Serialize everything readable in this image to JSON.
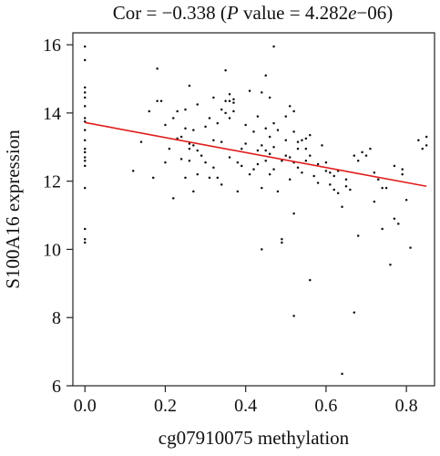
{
  "title": {
    "prefix": "Cor = −0.338 (",
    "p_symbol": "P",
    "suffix_before_e": " value = 4.282",
    "e_symbol": "e",
    "suffix_after_e": "−06)"
  },
  "colors": {
    "points": "#111111",
    "fit_line": "#e01b1b",
    "axes": "#222222"
  },
  "chart_data": {
    "type": "scatter",
    "title": "Cor = −0.338 (P value = 4.282e−06)",
    "xlabel": "cg07910075 methylation",
    "ylabel": "S100A16 expression",
    "xlim": [
      -0.03,
      0.87
    ],
    "ylim": [
      6.0,
      16.35
    ],
    "x_ticks": [
      0.0,
      0.2,
      0.4,
      0.6,
      0.8
    ],
    "x_tick_labels": [
      "0.0",
      "0.2",
      "0.4",
      "0.6",
      "0.8"
    ],
    "y_ticks": [
      6,
      8,
      10,
      12,
      14,
      16
    ],
    "y_tick_labels": [
      "6",
      "8",
      "10",
      "12",
      "14",
      "16"
    ],
    "grid": false,
    "fit_line": {
      "x": [
        0.0,
        0.85
      ],
      "y": [
        13.72,
        11.85
      ]
    },
    "points": [
      [
        0.0,
        15.95
      ],
      [
        0.0,
        15.55
      ],
      [
        0.0,
        14.75
      ],
      [
        0.0,
        14.6
      ],
      [
        0.0,
        14.45
      ],
      [
        0.0,
        14.2
      ],
      [
        0.0,
        13.85
      ],
      [
        0.0,
        13.75
      ],
      [
        0.0,
        13.5
      ],
      [
        0.0,
        13.2
      ],
      [
        0.0,
        12.95
      ],
      [
        0.0,
        12.85
      ],
      [
        0.0,
        12.7
      ],
      [
        0.0,
        12.6
      ],
      [
        0.0,
        12.45
      ],
      [
        0.0,
        11.8
      ],
      [
        0.0,
        10.6
      ],
      [
        0.0,
        10.3
      ],
      [
        0.0,
        10.2
      ],
      [
        0.12,
        12.3
      ],
      [
        0.14,
        13.15
      ],
      [
        0.16,
        14.05
      ],
      [
        0.17,
        12.1
      ],
      [
        0.18,
        15.3
      ],
      [
        0.18,
        14.35
      ],
      [
        0.19,
        14.35
      ],
      [
        0.2,
        13.65
      ],
      [
        0.2,
        12.55
      ],
      [
        0.21,
        12.95
      ],
      [
        0.22,
        11.5
      ],
      [
        0.22,
        13.85
      ],
      [
        0.23,
        14.05
      ],
      [
        0.23,
        13.25
      ],
      [
        0.24,
        12.65
      ],
      [
        0.24,
        13.3
      ],
      [
        0.25,
        14.1
      ],
      [
        0.25,
        13.55
      ],
      [
        0.25,
        12.1
      ],
      [
        0.26,
        14.8
      ],
      [
        0.26,
        13.1
      ],
      [
        0.26,
        12.95
      ],
      [
        0.26,
        12.6
      ],
      [
        0.27,
        13.5
      ],
      [
        0.27,
        13.05
      ],
      [
        0.27,
        11.7
      ],
      [
        0.28,
        14.25
      ],
      [
        0.28,
        12.9
      ],
      [
        0.28,
        12.2
      ],
      [
        0.29,
        12.75
      ],
      [
        0.3,
        13.6
      ],
      [
        0.3,
        12.55
      ],
      [
        0.31,
        13.85
      ],
      [
        0.31,
        12.1
      ],
      [
        0.32,
        14.45
      ],
      [
        0.32,
        13.2
      ],
      [
        0.32,
        12.4
      ],
      [
        0.33,
        13.7
      ],
      [
        0.33,
        12.1
      ],
      [
        0.34,
        14.1
      ],
      [
        0.34,
        13.15
      ],
      [
        0.34,
        11.9
      ],
      [
        0.35,
        14.35
      ],
      [
        0.35,
        15.25
      ],
      [
        0.35,
        14.0
      ],
      [
        0.36,
        14.55
      ],
      [
        0.36,
        14.35
      ],
      [
        0.36,
        13.85
      ],
      [
        0.36,
        12.7
      ],
      [
        0.37,
        14.4
      ],
      [
        0.37,
        14.3
      ],
      [
        0.37,
        14.05
      ],
      [
        0.38,
        12.55
      ],
      [
        0.38,
        11.7
      ],
      [
        0.39,
        12.95
      ],
      [
        0.39,
        12.45
      ],
      [
        0.4,
        13.65
      ],
      [
        0.4,
        13.1
      ],
      [
        0.41,
        14.65
      ],
      [
        0.41,
        12.2
      ],
      [
        0.42,
        13.45
      ],
      [
        0.42,
        12.35
      ],
      [
        0.43,
        13.9
      ],
      [
        0.43,
        12.9
      ],
      [
        0.43,
        12.5
      ],
      [
        0.44,
        14.6
      ],
      [
        0.44,
        13.05
      ],
      [
        0.44,
        11.8
      ],
      [
        0.44,
        10.0
      ],
      [
        0.45,
        15.1
      ],
      [
        0.45,
        13.55
      ],
      [
        0.45,
        12.9
      ],
      [
        0.45,
        12.6
      ],
      [
        0.46,
        14.45
      ],
      [
        0.46,
        13.3
      ],
      [
        0.46,
        12.8
      ],
      [
        0.46,
        12.2
      ],
      [
        0.47,
        15.95
      ],
      [
        0.47,
        13.7
      ],
      [
        0.47,
        13.0
      ],
      [
        0.47,
        12.35
      ],
      [
        0.48,
        13.5
      ],
      [
        0.48,
        11.7
      ],
      [
        0.49,
        10.3
      ],
      [
        0.49,
        10.2
      ],
      [
        0.49,
        12.6
      ],
      [
        0.5,
        13.9
      ],
      [
        0.5,
        13.2
      ],
      [
        0.5,
        12.75
      ],
      [
        0.51,
        14.2
      ],
      [
        0.51,
        12.7
      ],
      [
        0.51,
        12.05
      ],
      [
        0.52,
        14.05
      ],
      [
        0.52,
        13.45
      ],
      [
        0.52,
        12.55
      ],
      [
        0.52,
        11.05
      ],
      [
        0.52,
        8.05
      ],
      [
        0.53,
        12.95
      ],
      [
        0.53,
        13.15
      ],
      [
        0.53,
        12.4
      ],
      [
        0.54,
        13.2
      ],
      [
        0.54,
        12.25
      ],
      [
        0.55,
        13.25
      ],
      [
        0.55,
        12.6
      ],
      [
        0.55,
        12.95
      ],
      [
        0.56,
        13.35
      ],
      [
        0.56,
        12.75
      ],
      [
        0.56,
        9.1
      ],
      [
        0.57,
        12.15
      ],
      [
        0.58,
        12.5
      ],
      [
        0.58,
        11.95
      ],
      [
        0.59,
        13.05
      ],
      [
        0.6,
        12.3
      ],
      [
        0.6,
        12.55
      ],
      [
        0.61,
        11.9
      ],
      [
        0.61,
        12.25
      ],
      [
        0.62,
        12.15
      ],
      [
        0.62,
        11.75
      ],
      [
        0.63,
        12.3
      ],
      [
        0.63,
        11.65
      ],
      [
        0.64,
        11.25
      ],
      [
        0.64,
        6.35
      ],
      [
        0.65,
        12.05
      ],
      [
        0.65,
        11.85
      ],
      [
        0.66,
        11.75
      ],
      [
        0.67,
        12.75
      ],
      [
        0.67,
        8.15
      ],
      [
        0.68,
        12.6
      ],
      [
        0.68,
        10.4
      ],
      [
        0.69,
        12.85
      ],
      [
        0.7,
        12.75
      ],
      [
        0.71,
        12.95
      ],
      [
        0.72,
        12.25
      ],
      [
        0.72,
        11.4
      ],
      [
        0.73,
        12.05
      ],
      [
        0.74,
        11.8
      ],
      [
        0.74,
        10.6
      ],
      [
        0.75,
        11.8
      ],
      [
        0.76,
        9.55
      ],
      [
        0.77,
        12.45
      ],
      [
        0.77,
        10.9
      ],
      [
        0.78,
        10.75
      ],
      [
        0.79,
        12.2
      ],
      [
        0.79,
        12.35
      ],
      [
        0.8,
        11.45
      ],
      [
        0.81,
        10.05
      ],
      [
        0.83,
        13.2
      ],
      [
        0.84,
        12.95
      ],
      [
        0.85,
        13.3
      ],
      [
        0.85,
        13.05
      ]
    ]
  }
}
